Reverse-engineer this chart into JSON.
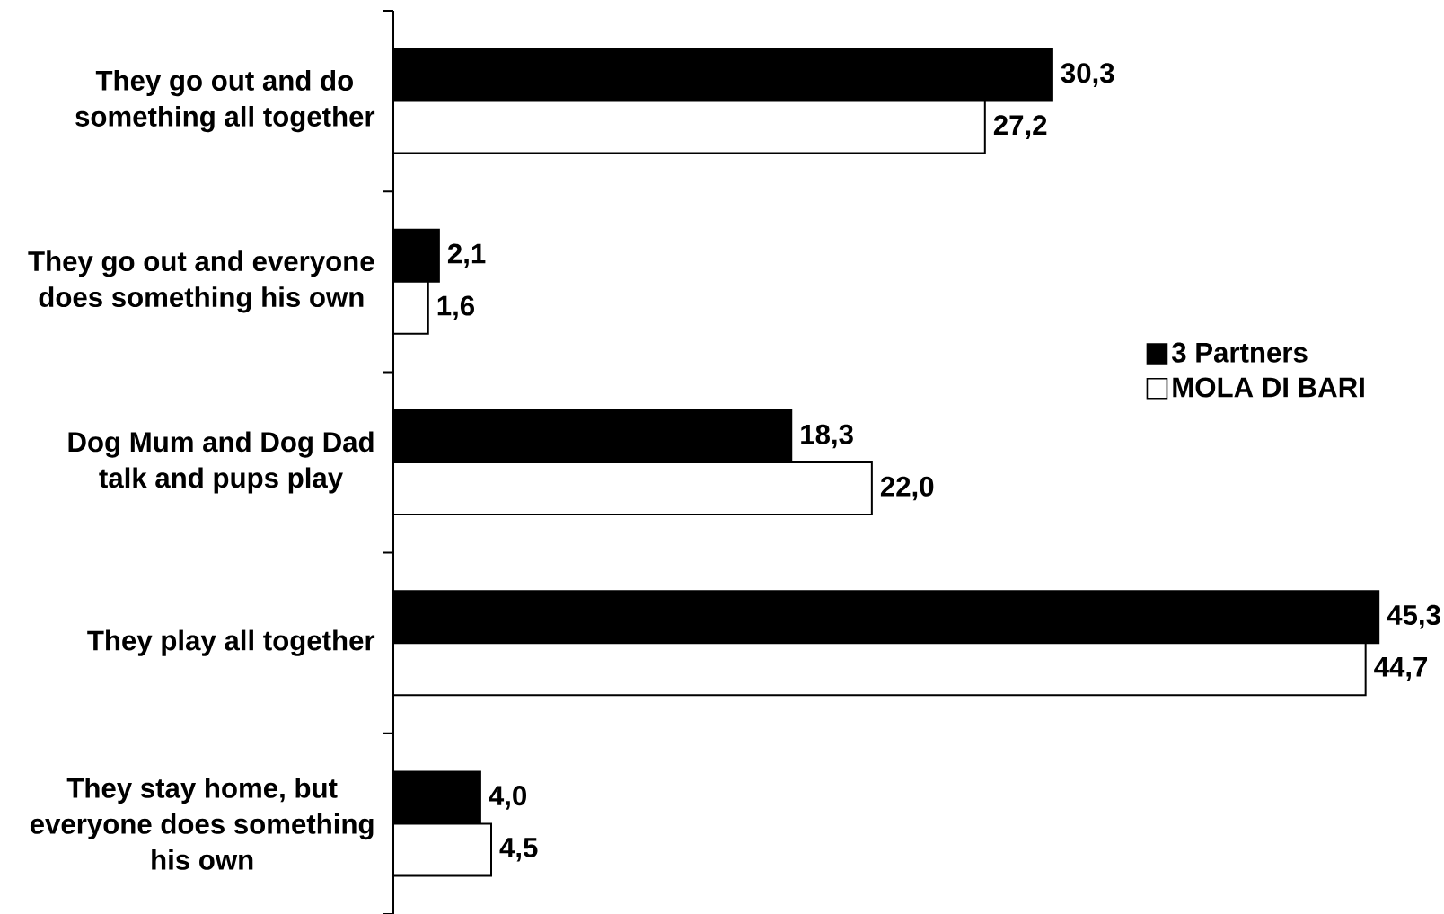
{
  "chart_data": {
    "type": "bar",
    "orientation": "horizontal",
    "categories": [
      "They go out and do something all together",
      "They go out and everyone does something his own",
      "Dog Mum and Dog Dad talk and pups play",
      "They play all together",
      "They stay home, but everyone does something his own"
    ],
    "series": [
      {
        "name": "3 Partners",
        "color": "#000000",
        "values": [
          30.3,
          2.1,
          18.3,
          45.3,
          4.0
        ],
        "value_labels": [
          "30,3",
          "2,1",
          "18,3",
          "45,3",
          "4,0"
        ]
      },
      {
        "name": "MOLA DI BARI",
        "color": "#ffffff",
        "values": [
          27.2,
          1.6,
          22.0,
          44.7,
          4.5
        ],
        "value_labels": [
          "27,2",
          "1,6",
          "22,0",
          "44,7",
          "4,5"
        ]
      }
    ],
    "legend": "right",
    "tick_labels": "y"
  }
}
